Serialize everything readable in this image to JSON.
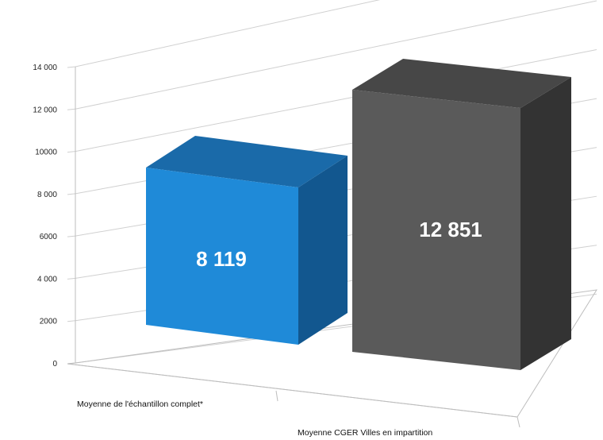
{
  "chart_data": {
    "type": "bar",
    "categories": [
      "Moyenne de l'échantillon complet*",
      "Moyenne CGER Villes en impartition"
    ],
    "values": [
      8119,
      12851
    ],
    "data_labels": [
      "8 119",
      "12 851"
    ],
    "ylim": [
      0,
      14000
    ],
    "yticks": [
      0,
      2000,
      4000,
      6000,
      8000,
      10000,
      12000,
      14000
    ],
    "ytick_labels": [
      "0",
      "2000",
      "4 000",
      "6000",
      "8 000",
      "10000",
      "12 000",
      "14 000"
    ],
    "grid": true,
    "style": "3d-column",
    "colors": {
      "bar1_front": "#1f8ad8",
      "bar1_side": "#12578f",
      "bar1_top": "#1a6aa9",
      "bar2_front": "#5a5a5a",
      "bar2_side": "#333333",
      "bar2_top": "#474747"
    }
  }
}
